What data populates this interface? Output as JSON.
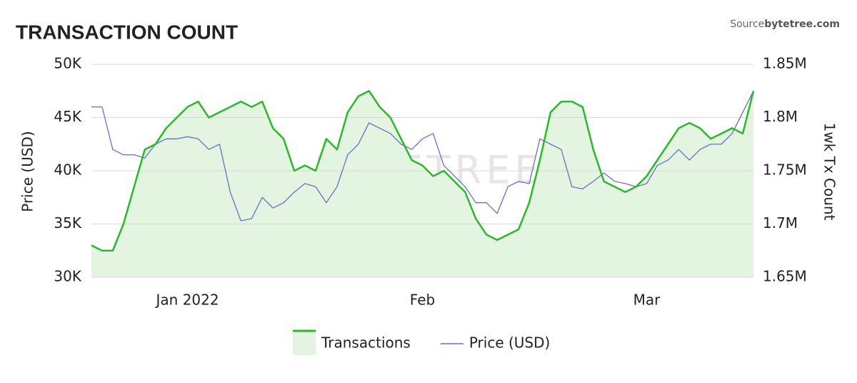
{
  "chart_data": {
    "type": "line",
    "title": "TRANSACTION COUNT",
    "source_label": "Source:",
    "source_name": "bytetree.com",
    "watermark": "BYTETREE",
    "y_label": "Price (USD)",
    "y2_label": "1wk Tx Count",
    "grid": true,
    "legend": "bottom",
    "categories": [
      null,
      null,
      null,
      null,
      null,
      null,
      null,
      null,
      null,
      "Jan 2022",
      null,
      null,
      null,
      null,
      null,
      null,
      null,
      null,
      null,
      null,
      null,
      null,
      null,
      null,
      null,
      null,
      null,
      null,
      null,
      null,
      null,
      "Feb",
      null,
      null,
      null,
      null,
      null,
      null,
      null,
      null,
      null,
      null,
      null,
      null,
      null,
      null,
      null,
      null,
      null,
      null,
      null,
      null,
      "Mar",
      null,
      null,
      null,
      null,
      null,
      null,
      null,
      null,
      null,
      null
    ],
    "ylim": [
      30000,
      50000
    ],
    "yticks": [
      {
        "value": 30000,
        "label": "30K"
      },
      {
        "value": 35000,
        "label": "35K"
      },
      {
        "value": 40000,
        "label": "40K"
      },
      {
        "value": 45000,
        "label": "45K"
      },
      {
        "value": 50000,
        "label": "50K"
      }
    ],
    "y2lim": [
      1650000,
      1850000
    ],
    "y2ticks": [
      {
        "value": 1650000,
        "label": "1.65M"
      },
      {
        "value": 1700000,
        "label": "1.7M"
      },
      {
        "value": 1750000,
        "label": "1.75M"
      },
      {
        "value": 1800000,
        "label": "1.8M"
      },
      {
        "value": 1850000,
        "label": "1.85M"
      }
    ],
    "series": [
      {
        "name": "Transactions",
        "axis": "y2",
        "color": "#2cb82c",
        "area": true,
        "fill": "#e3f5e1",
        "values": [
          1680000,
          1675000,
          1675000,
          1700000,
          1735000,
          1770000,
          1775000,
          1790000,
          1800000,
          1810000,
          1815000,
          1800000,
          1805000,
          1810000,
          1815000,
          1810000,
          1815000,
          1790000,
          1780000,
          1750000,
          1755000,
          1750000,
          1780000,
          1770000,
          1805000,
          1820000,
          1825000,
          1810000,
          1800000,
          1780000,
          1760000,
          1755000,
          1745000,
          1750000,
          1740000,
          1730000,
          1705000,
          1690000,
          1685000,
          1690000,
          1695000,
          1720000,
          1760000,
          1805000,
          1815000,
          1815000,
          1810000,
          1770000,
          1740000,
          1735000,
          1730000,
          1735000,
          1745000,
          1760000,
          1775000,
          1790000,
          1795000,
          1790000,
          1780000,
          1785000,
          1790000,
          1785000,
          1825000
        ]
      },
      {
        "name": "Price (USD)",
        "axis": "y",
        "color": "#6670c4",
        "values": [
          46000,
          46000,
          42000,
          41500,
          41500,
          41200,
          42500,
          43000,
          43000,
          43200,
          43000,
          42000,
          42500,
          38000,
          35300,
          35500,
          37500,
          36500,
          37000,
          38000,
          38800,
          38500,
          37000,
          38500,
          41500,
          42500,
          44500,
          44000,
          43500,
          42500,
          42000,
          43000,
          43500,
          40500,
          39500,
          38500,
          37000,
          37000,
          36000,
          38500,
          39000,
          38800,
          43000,
          42500,
          42000,
          38500,
          38300,
          39000,
          39800,
          39000,
          38800,
          38500,
          38800,
          40500,
          41000,
          42000,
          41000,
          42000,
          42500,
          42500,
          43500,
          45500,
          47500
        ]
      }
    ]
  }
}
